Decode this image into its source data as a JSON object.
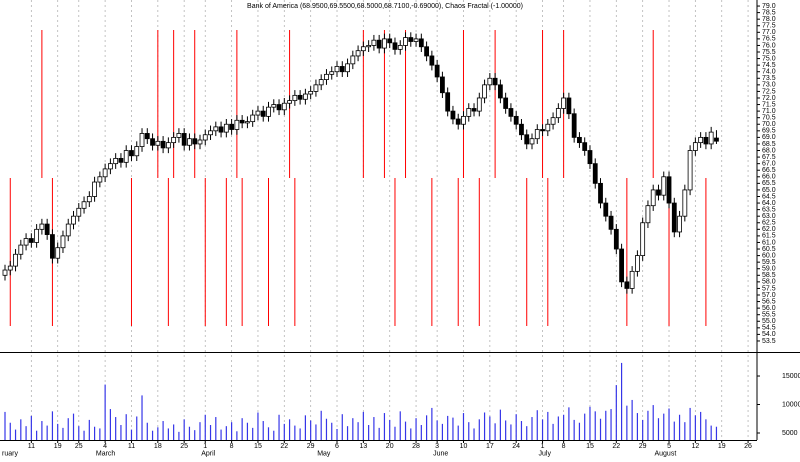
{
  "chart_data": {
    "type": "candlestick",
    "title": "Bank of America (68.9500,69.5500,68.5000,68.7100,-0.69000), Chaos Fractal (-1.00000)",
    "categories": [
      null,
      null,
      null,
      null,
      null,
      "11",
      null,
      null,
      null,
      null,
      "19",
      null,
      null,
      null,
      "25",
      null,
      null,
      null,
      null,
      "4",
      null,
      null,
      null,
      null,
      "11",
      null,
      null,
      null,
      null,
      "18",
      null,
      null,
      null,
      null,
      "25",
      null,
      null,
      null,
      "1",
      null,
      null,
      null,
      null,
      "8",
      null,
      null,
      null,
      null,
      "15",
      null,
      null,
      null,
      null,
      "22",
      null,
      null,
      null,
      null,
      "29",
      null,
      null,
      null,
      null,
      "6",
      null,
      null,
      null,
      null,
      "13",
      null,
      null,
      null,
      null,
      "20",
      null,
      null,
      null,
      null,
      "28",
      null,
      null,
      null,
      "3",
      null,
      null,
      null,
      null,
      "10",
      null,
      null,
      null,
      null,
      "17",
      null,
      null,
      null,
      null,
      "24",
      null,
      null,
      null,
      null,
      "1",
      null,
      null,
      null,
      "8",
      null,
      null,
      null,
      null,
      "15",
      null,
      null,
      null,
      null,
      "22",
      null,
      null,
      null,
      null,
      "29",
      null,
      null,
      null,
      null,
      "5",
      null,
      null,
      null,
      null,
      "12",
      null,
      null,
      null,
      null,
      "19",
      null,
      null,
      null,
      null,
      "26"
    ],
    "month_labels": [
      "ruary",
      null,
      null,
      null,
      null,
      null,
      null,
      null,
      null,
      null,
      null,
      null,
      null,
      null,
      null,
      null,
      null,
      null,
      "March",
      null,
      null,
      null,
      null,
      null,
      null,
      null,
      null,
      null,
      null,
      null,
      null,
      null,
      null,
      null,
      null,
      null,
      null,
      null,
      "April",
      null,
      null,
      null,
      null,
      null,
      null,
      null,
      null,
      null,
      null,
      null,
      null,
      null,
      null,
      null,
      null,
      null,
      null,
      null,
      null,
      null,
      "May",
      null,
      null,
      null,
      null,
      null,
      null,
      null,
      null,
      null,
      null,
      null,
      null,
      null,
      null,
      null,
      null,
      null,
      null,
      null,
      null,
      null,
      "June",
      null,
      null,
      null,
      null,
      null,
      null,
      null,
      null,
      null,
      null,
      null,
      null,
      null,
      null,
      null,
      null,
      null,
      null,
      null,
      "July",
      null,
      null,
      null,
      null,
      null,
      null,
      null,
      null,
      null,
      null,
      null,
      null,
      null,
      null,
      null,
      null,
      null,
      null,
      null,
      null,
      null,
      "August",
      null,
      null,
      null,
      null,
      null,
      null,
      null,
      null,
      null,
      null,
      null,
      null,
      null,
      null,
      null,
      null,
      null
    ],
    "open": [
      58.5,
      58.9,
      59.2,
      60.1,
      60.8,
      61.3,
      61.0,
      62.0,
      62.4,
      61.6,
      59.8,
      60.6,
      61.5,
      62.4,
      63.0,
      63.6,
      64.1,
      64.5,
      65.6,
      66.0,
      66.6,
      67.0,
      67.4,
      67.1,
      68.0,
      67.6,
      68.3,
      69.3,
      68.9,
      68.4,
      68.7,
      68.2,
      68.6,
      69.0,
      69.3,
      68.4,
      68.9,
      68.5,
      68.8,
      69.2,
      69.5,
      69.8,
      69.4,
      70.0,
      69.6,
      70.3,
      70.1,
      70.2,
      70.7,
      71.0,
      70.6,
      71.3,
      71.5,
      71.1,
      71.6,
      71.8,
      72.2,
      71.9,
      72.3,
      72.5,
      73.0,
      73.4,
      73.8,
      74.0,
      74.4,
      74.0,
      74.6,
      75.2,
      75.6,
      75.9,
      76.0,
      76.4,
      75.8,
      76.5,
      76.2,
      75.7,
      76.0,
      76.6,
      76.3,
      76.5,
      75.9,
      75.2,
      74.5,
      73.6,
      72.4,
      71.0,
      70.4,
      70.0,
      70.6,
      71.2,
      71.0,
      72.0,
      73.0,
      73.5,
      73.0,
      72.0,
      71.2,
      70.6,
      70.0,
      69.2,
      68.5,
      68.9,
      69.6,
      69.5,
      70.0,
      70.5,
      71.2,
      72.0,
      70.8,
      69.0,
      68.6,
      68.0,
      67.0,
      65.5,
      64.0,
      63.0,
      62.0,
      60.5,
      58.0,
      57.5,
      58.8,
      60.0,
      62.5,
      63.8,
      65.0,
      64.6,
      66.0,
      64.0,
      61.8,
      63.0,
      65.0,
      68.0,
      68.6,
      69.0,
      68.5,
      68.95,
      null,
      null,
      null,
      null,
      null,
      null
    ],
    "high": [
      59.3,
      59.6,
      60.5,
      61.2,
      61.7,
      61.7,
      62.4,
      62.8,
      62.8,
      62.0,
      61.0,
      61.9,
      62.8,
      63.4,
      64.0,
      64.5,
      64.9,
      66.0,
      66.4,
      67.0,
      67.4,
      67.8,
      67.8,
      68.4,
      68.4,
      68.7,
      69.7,
      69.7,
      69.3,
      69.1,
      69.1,
      69.0,
      69.4,
      69.7,
      69.7,
      69.3,
      69.3,
      69.2,
      69.6,
      69.9,
      70.2,
      70.2,
      70.4,
      70.4,
      70.7,
      70.7,
      70.6,
      71.1,
      71.4,
      71.4,
      71.7,
      71.9,
      71.9,
      72.0,
      72.2,
      72.6,
      72.6,
      72.7,
      72.9,
      73.4,
      73.8,
      74.2,
      74.4,
      74.8,
      74.8,
      75.0,
      75.6,
      76.0,
      76.3,
      76.4,
      76.8,
      76.8,
      76.9,
      76.9,
      76.6,
      76.4,
      77.0,
      77.0,
      76.9,
      76.9,
      76.3,
      75.6,
      74.9,
      74.0,
      72.8,
      71.4,
      70.8,
      71.0,
      71.6,
      71.6,
      72.4,
      73.4,
      73.9,
      73.9,
      73.4,
      72.4,
      71.6,
      71.0,
      70.4,
      69.6,
      69.3,
      70.0,
      70.0,
      70.4,
      70.9,
      71.6,
      72.4,
      72.4,
      71.2,
      69.4,
      69.0,
      68.4,
      67.4,
      65.9,
      64.4,
      63.4,
      62.4,
      60.9,
      58.4,
      59.2,
      60.4,
      62.9,
      64.2,
      65.4,
      65.4,
      66.4,
      66.4,
      64.4,
      63.4,
      65.4,
      68.4,
      69.0,
      69.4,
      69.4,
      69.8,
      69.55,
      null,
      null,
      null,
      null,
      null,
      null
    ],
    "low": [
      58.1,
      58.5,
      58.8,
      59.7,
      60.4,
      60.6,
      60.6,
      61.6,
      61.2,
      59.4,
      59.4,
      60.2,
      61.1,
      62.0,
      62.6,
      63.2,
      63.7,
      64.1,
      65.2,
      65.6,
      66.2,
      66.6,
      66.7,
      66.7,
      67.2,
      67.2,
      67.9,
      68.5,
      68.0,
      68.0,
      67.8,
      67.8,
      68.2,
      68.6,
      68.0,
      68.0,
      68.1,
      68.1,
      68.4,
      68.8,
      69.1,
      69.0,
      69.0,
      69.2,
      69.2,
      69.7,
      69.7,
      69.8,
      70.3,
      70.2,
      70.2,
      70.9,
      70.7,
      70.7,
      71.2,
      71.4,
      71.5,
      71.5,
      71.9,
      72.1,
      72.6,
      73.0,
      73.4,
      73.6,
      73.6,
      73.6,
      74.2,
      74.8,
      75.2,
      75.5,
      75.6,
      75.4,
      75.4,
      75.8,
      75.3,
      75.3,
      75.6,
      75.9,
      75.9,
      75.5,
      74.8,
      74.1,
      73.2,
      72.0,
      70.6,
      70.0,
      69.6,
      69.6,
      70.2,
      70.6,
      70.6,
      71.6,
      72.6,
      72.6,
      71.6,
      70.8,
      70.2,
      69.6,
      68.8,
      68.1,
      68.1,
      68.5,
      69.1,
      69.1,
      69.6,
      70.1,
      70.8,
      70.4,
      68.6,
      68.2,
      67.6,
      66.6,
      65.1,
      63.6,
      62.6,
      61.6,
      60.1,
      57.6,
      57.1,
      57.1,
      58.4,
      59.6,
      62.1,
      63.4,
      64.2,
      64.2,
      63.6,
      61.4,
      61.4,
      62.6,
      64.6,
      67.6,
      68.2,
      68.1,
      68.1,
      68.5,
      null,
      null,
      null,
      null,
      null,
      null
    ],
    "close": [
      58.9,
      59.2,
      60.1,
      60.8,
      61.3,
      61.0,
      62.0,
      62.4,
      61.6,
      59.8,
      60.6,
      61.5,
      62.4,
      63.0,
      63.6,
      64.1,
      64.5,
      65.6,
      66.0,
      66.6,
      67.0,
      67.4,
      67.1,
      68.0,
      67.6,
      68.3,
      69.3,
      68.9,
      68.4,
      68.7,
      68.2,
      68.6,
      69.0,
      69.3,
      68.4,
      68.9,
      68.5,
      68.8,
      69.2,
      69.5,
      69.8,
      69.4,
      70.0,
      69.6,
      70.3,
      70.1,
      70.2,
      70.7,
      71.0,
      70.6,
      71.3,
      71.5,
      71.1,
      71.6,
      71.8,
      72.2,
      71.9,
      72.3,
      72.5,
      73.0,
      73.4,
      73.8,
      74.0,
      74.4,
      74.0,
      74.6,
      75.2,
      75.6,
      75.9,
      76.0,
      76.4,
      75.8,
      76.5,
      76.2,
      75.7,
      76.0,
      76.6,
      76.3,
      76.5,
      75.9,
      75.2,
      74.5,
      73.6,
      72.4,
      71.0,
      70.4,
      70.0,
      70.6,
      71.2,
      71.0,
      72.0,
      73.0,
      73.5,
      73.0,
      72.0,
      71.2,
      70.6,
      70.0,
      69.2,
      68.5,
      68.9,
      69.6,
      69.5,
      70.0,
      70.5,
      71.2,
      72.0,
      70.8,
      69.0,
      68.6,
      68.0,
      67.0,
      65.5,
      64.0,
      63.0,
      62.0,
      60.5,
      58.0,
      57.5,
      58.8,
      60.0,
      62.5,
      63.8,
      65.0,
      64.6,
      66.0,
      64.0,
      61.8,
      63.0,
      65.0,
      68.0,
      68.6,
      69.0,
      68.5,
      69.4,
      68.71,
      null,
      null,
      null,
      null,
      null,
      null
    ],
    "ylim": [
      52.66,
      79.46
    ],
    "yticks": [
      {
        "value": 79,
        "label": "79.0"
      },
      78.5,
      {
        "value": 78,
        "label": "78.0"
      },
      77.5,
      {
        "value": 77,
        "label": "77.0"
      },
      76.5,
      {
        "value": 76,
        "label": "76.0"
      },
      75.5,
      {
        "value": 75,
        "label": "75.0"
      },
      74.5,
      {
        "value": 74,
        "label": "74.0"
      },
      73.5,
      {
        "value": 73,
        "label": "73.0"
      },
      72.5,
      {
        "value": 72,
        "label": "72.0"
      },
      71.5,
      {
        "value": 71,
        "label": "71.0"
      },
      70.5,
      {
        "value": 70,
        "label": "70.0"
      },
      69.5,
      {
        "value": 69,
        "label": "69.0"
      },
      68.5,
      {
        "value": 68,
        "label": "68.0"
      },
      67.5,
      {
        "value": 67,
        "label": "67.0"
      },
      66.5,
      {
        "value": 66,
        "label": "66.0"
      },
      65.5,
      {
        "value": 65,
        "label": "65.0"
      },
      64.5,
      {
        "value": 64,
        "label": "64.0"
      },
      63.5,
      {
        "value": 63,
        "label": "63.0"
      },
      62.5,
      {
        "value": 62,
        "label": "62.0"
      },
      61.5,
      {
        "value": 61,
        "label": "61.0"
      },
      60.5,
      {
        "value": 60,
        "label": "60.0"
      },
      59.5,
      {
        "value": 59,
        "label": "59.0"
      },
      58.5,
      {
        "value": 58,
        "label": "58.0"
      },
      57.5,
      {
        "value": 57,
        "label": "57.0"
      },
      56.5,
      {
        "value": 56,
        "label": "56.0"
      },
      55.5,
      {
        "value": 55,
        "label": "55.0"
      },
      54.5,
      {
        "value": 54,
        "label": "54.0"
      },
      53.5
    ],
    "up_color": "#ffffff",
    "down_color": "#000000",
    "grid": true,
    "volume": {
      "values": [
        8700,
        6800,
        5600,
        7400,
        6200,
        8000,
        5400,
        7100,
        6300,
        8800,
        6600,
        5900,
        7600,
        8400,
        6200,
        5400,
        7300,
        6100,
        5800,
        13500,
        9200,
        7800,
        6400,
        8300,
        5600,
        7900,
        11600,
        6800,
        5400,
        6000,
        7100,
        5800,
        6500,
        5200,
        7400,
        6100,
        5500,
        6900,
        8200,
        6400,
        7800,
        5600,
        6200,
        6900,
        5300,
        7600,
        6800,
        5900,
        8600,
        7100,
        6000,
        5400,
        8200,
        6600,
        7400,
        6300,
        5800,
        8100,
        7200,
        6500,
        8900,
        7500,
        6800,
        5700,
        8300,
        6200,
        7600,
        6900,
        8700,
        6400,
        7800,
        5900,
        8500,
        7300,
        6100,
        8800,
        7000,
        5800,
        7600,
        6400,
        8100,
        9400,
        7200,
        6600,
        8000,
        7700,
        6300,
        8500,
        6900,
        5800,
        7400,
        8600,
        7900,
        6700,
        9100,
        7200,
        6500,
        8300,
        7100,
        6200,
        7800,
        9000,
        7400,
        8700,
        6600,
        7900,
        8200,
        9500,
        7300,
        6800,
        8400,
        9600,
        8800,
        7500,
        8900,
        9200,
        13400,
        17300,
        9800,
        10800,
        8500,
        7300,
        8900,
        9900,
        7600,
        8400,
        9300,
        7000,
        8200,
        6900,
        9400,
        8100,
        8700,
        7400,
        6300,
        6100,
        null,
        null,
        null,
        null,
        null,
        null
      ],
      "color": "#3535e8",
      "ylim": [
        3770,
        19040
      ],
      "yticks": [
        5000,
        10000,
        15000
      ]
    },
    "fractal": {
      "values": [
        0,
        -1,
        0,
        0,
        0,
        0,
        0,
        1,
        0,
        -1,
        0,
        0,
        0,
        0,
        0,
        0,
        0,
        0,
        0,
        0,
        0,
        0,
        0,
        0,
        -1,
        0,
        0,
        0,
        0,
        1,
        0,
        -1,
        1,
        0,
        0,
        0,
        1,
        0,
        -1,
        0,
        0,
        0,
        -1,
        0,
        1,
        -1,
        0,
        0,
        0,
        0,
        -1,
        0,
        0,
        0,
        1,
        -1,
        0,
        0,
        0,
        0,
        0,
        0,
        0,
        0,
        0,
        0,
        0,
        0,
        1,
        0,
        0,
        0,
        1,
        0,
        -1,
        0,
        1,
        0,
        0,
        0,
        0,
        -1,
        0,
        0,
        0,
        0,
        -1,
        1,
        0,
        0,
        -1,
        0,
        0,
        1,
        0,
        0,
        0,
        0,
        0,
        -1,
        0,
        0,
        1,
        -1,
        0,
        0,
        1,
        0,
        0,
        0,
        0,
        0,
        0,
        0,
        0,
        0,
        0,
        0,
        -1,
        0,
        0,
        0,
        0,
        1,
        0,
        0,
        -1,
        0,
        0,
        0,
        0,
        0,
        0,
        -1,
        0,
        0,
        null,
        null,
        null,
        null,
        null,
        null
      ],
      "color": "#ff0000",
      "ylim": [
        -1.176,
        1.203
      ]
    }
  }
}
